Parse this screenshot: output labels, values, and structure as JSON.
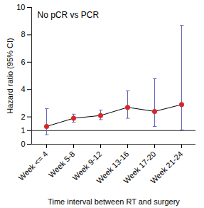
{
  "chart_data": {
    "type": "line",
    "title": "No pCR vs PCR",
    "x_label": "Time interval between RT and surgery",
    "y_label": "Hazard ratio (95% CI)",
    "categories": [
      "Week <= 4",
      "Week 5-8",
      "Week 9-12",
      "Week 13-16",
      "Week 17-20",
      "Week 21-24"
    ],
    "series": [
      {
        "values": [
          1.3,
          1.9,
          2.1,
          2.7,
          2.4,
          2.9
        ],
        "ci_lower": [
          0.7,
          1.6,
          1.8,
          1.9,
          1.3,
          1.05
        ],
        "ci_upper": [
          2.6,
          2.2,
          2.5,
          3.9,
          4.8,
          8.7
        ],
        "color": "#d62728",
        "marker": "dot"
      }
    ],
    "reference_line": 1,
    "ylim": [
      0,
      10
    ],
    "yticks": [
      0,
      1,
      2,
      4,
      6,
      8,
      10
    ],
    "grid": false
  }
}
